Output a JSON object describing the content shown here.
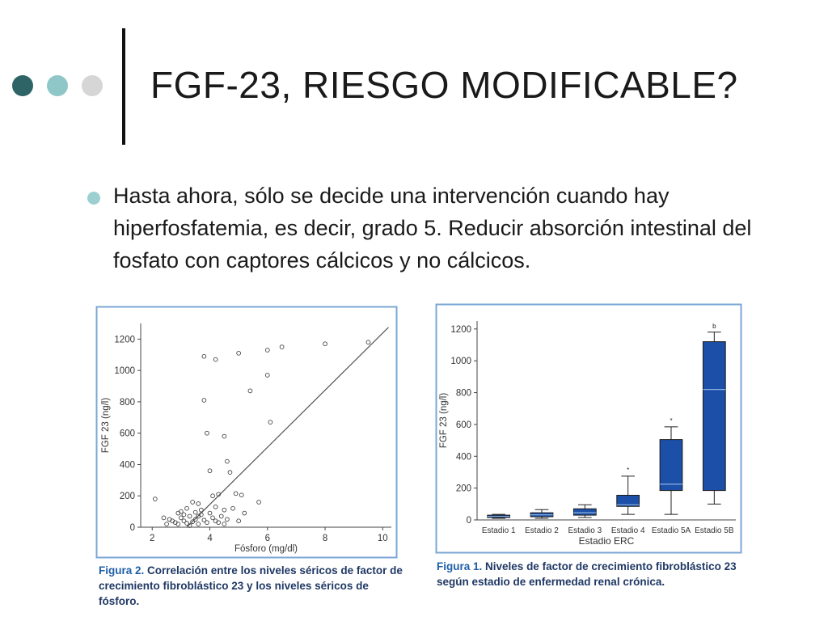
{
  "slide": {
    "title": "FGF-23, RIESGO MODIFICABLE?",
    "bullet": "Hasta ahora, sólo se decide una intervención cuando hay hiperfosfatemia, es decir, grado 5. Reducir absorción intestinal del fosfato con captores cálcicos y no cálcicos.",
    "colors": {
      "dot1": "#2f6467",
      "dot2": "#8fc6c7",
      "dot3": "#d6d6d6",
      "bullet": "#9ccfd0",
      "box_fill": "#1c4fa8",
      "frame": "#7ba7d4"
    }
  },
  "figures": {
    "left": {
      "caption_label": "Figura 2.",
      "caption_text": "Correlación entre los niveles séricos de factor de crecimiento fibroblástico 23 y los niveles séricos de fósforo."
    },
    "right": {
      "caption_label": "Figura 1.",
      "caption_text": "Niveles de factor de crecimiento fibroblástico 23 según estadio de enfermedad renal crónica."
    }
  },
  "chart_data": [
    {
      "type": "scatter",
      "title": "",
      "xlabel": "Fósforo (mg/dl)",
      "ylabel": "FGF 23 (ng/l)",
      "xlim": [
        1.6,
        10.3
      ],
      "ylim": [
        0,
        1300
      ],
      "xticks": [
        2,
        4,
        6,
        8,
        10
      ],
      "yticks": [
        0,
        200,
        400,
        600,
        800,
        1000,
        1200
      ],
      "points": [
        [
          3.8,
          1090
        ],
        [
          4.2,
          1070
        ],
        [
          5.0,
          1110
        ],
        [
          6.0,
          1130
        ],
        [
          6.5,
          1150
        ],
        [
          8.0,
          1170
        ],
        [
          9.5,
          1180
        ],
        [
          3.8,
          810
        ],
        [
          5.4,
          870
        ],
        [
          6.0,
          970
        ],
        [
          3.9,
          600
        ],
        [
          6.1,
          670
        ],
        [
          4.5,
          580
        ],
        [
          4.0,
          360
        ],
        [
          4.6,
          420
        ],
        [
          4.7,
          350
        ],
        [
          2.1,
          180
        ],
        [
          4.1,
          200
        ],
        [
          4.3,
          210
        ],
        [
          4.9,
          215
        ],
        [
          5.1,
          205
        ],
        [
          5.7,
          160
        ],
        [
          3.4,
          160
        ],
        [
          3.6,
          150
        ],
        [
          3.0,
          100
        ],
        [
          3.2,
          120
        ],
        [
          3.7,
          110
        ],
        [
          2.4,
          60
        ],
        [
          2.6,
          50
        ],
        [
          2.7,
          40
        ],
        [
          2.8,
          30
        ],
        [
          2.9,
          20
        ],
        [
          3.0,
          60
        ],
        [
          3.1,
          40
        ],
        [
          3.2,
          25
        ],
        [
          3.3,
          70
        ],
        [
          3.4,
          35
        ],
        [
          3.5,
          50
        ],
        [
          3.6,
          20
        ],
        [
          3.7,
          80
        ],
        [
          3.8,
          45
        ],
        [
          3.9,
          30
        ],
        [
          4.0,
          90
        ],
        [
          4.1,
          60
        ],
        [
          4.2,
          40
        ],
        [
          4.3,
          30
        ],
        [
          4.4,
          70
        ],
        [
          4.5,
          110
        ],
        [
          4.6,
          50
        ],
        [
          4.8,
          120
        ],
        [
          5.0,
          40
        ],
        [
          5.2,
          90
        ],
        [
          2.5,
          20
        ],
        [
          3.1,
          80
        ],
        [
          3.5,
          95
        ],
        [
          4.2,
          130
        ],
        [
          4.5,
          20
        ],
        [
          3.3,
          10
        ],
        [
          2.9,
          90
        ],
        [
          3.6,
          70
        ]
      ],
      "trendline": [
        [
          3.2,
          0
        ],
        [
          10.2,
          1275
        ]
      ]
    },
    {
      "type": "box",
      "title": "",
      "xlabel": "Estadio ERC",
      "ylabel": "FGF 23 (ng/l)",
      "ylim": [
        0,
        1250
      ],
      "yticks": [
        0,
        200,
        400,
        600,
        800,
        1000,
        1200
      ],
      "categories": [
        "Estadio 1",
        "Estadio 2",
        "Estadio 3",
        "Estadio 4",
        "Estadio 5A",
        "Estadio 5B"
      ],
      "boxes": [
        {
          "min": 10,
          "q1": 15,
          "median": 22,
          "q3": 30,
          "max": 35,
          "marker": ""
        },
        {
          "min": 10,
          "q1": 20,
          "median": 32,
          "q3": 45,
          "max": 65,
          "marker": ""
        },
        {
          "min": 15,
          "q1": 30,
          "median": 45,
          "q3": 70,
          "max": 95,
          "marker": ""
        },
        {
          "min": 35,
          "q1": 85,
          "median": 95,
          "q3": 155,
          "max": 275,
          "marker": "*"
        },
        {
          "min": 35,
          "q1": 185,
          "median": 225,
          "q3": 505,
          "max": 585,
          "marker": "*"
        },
        {
          "min": 100,
          "q1": 185,
          "median": 820,
          "q3": 1120,
          "max": 1180,
          "marker": "b"
        }
      ]
    }
  ]
}
